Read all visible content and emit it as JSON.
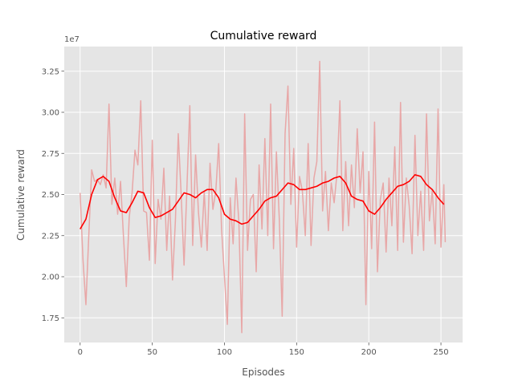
{
  "chart_data": {
    "type": "line",
    "title": "Cumulative reward",
    "xlabel": "Episodes",
    "ylabel": "Cumulative reward",
    "offset_text": "1e7",
    "xlim": [
      -11,
      265
    ],
    "ylim": [
      16000000,
      34000000
    ],
    "xticks": [
      0,
      50,
      100,
      150,
      200,
      250
    ],
    "xtick_labels": [
      "0",
      "50",
      "100",
      "150",
      "200",
      "250"
    ],
    "yticks": [
      17500000,
      20000000,
      22500000,
      25000000,
      27500000,
      30000000,
      32500000
    ],
    "ytick_labels": [
      "1.75",
      "2.00",
      "2.25",
      "2.50",
      "2.75",
      "3.00",
      "3.25"
    ],
    "grid": true,
    "colors": {
      "background": "#e5e5e5",
      "raw": "#e8a0a0",
      "smooth": "#ff0000"
    },
    "series": [
      {
        "role": "raw",
        "x": [
          0,
          2,
          4,
          6,
          8,
          10,
          12,
          14,
          16,
          18,
          20,
          22,
          24,
          26,
          28,
          30,
          32,
          34,
          36,
          38,
          40,
          42,
          44,
          46,
          48,
          50,
          52,
          54,
          56,
          58,
          60,
          62,
          64,
          66,
          68,
          70,
          72,
          74,
          76,
          78,
          80,
          82,
          84,
          86,
          88,
          90,
          92,
          94,
          96,
          98,
          100,
          102,
          104,
          106,
          108,
          110,
          112,
          114,
          116,
          118,
          120,
          122,
          124,
          126,
          128,
          130,
          132,
          134,
          136,
          138,
          140,
          142,
          144,
          146,
          148,
          150,
          152,
          154,
          156,
          158,
          160,
          162,
          164,
          166,
          168,
          170,
          172,
          174,
          176,
          178,
          180,
          182,
          184,
          186,
          188,
          190,
          192,
          194,
          196,
          198,
          200,
          202,
          204,
          206,
          208,
          210,
          212,
          214,
          216,
          218,
          220,
          222,
          224,
          226,
          228,
          230,
          232,
          234,
          236,
          238,
          240,
          242,
          244,
          246,
          248,
          250,
          252,
          253
        ],
        "y": [
          25100000,
          21000000,
          18300000,
          22500000,
          26500000,
          25800000,
          25900000,
          25600000,
          26200000,
          25400000,
          30500000,
          24400000,
          26000000,
          23800000,
          25800000,
          22500000,
          19400000,
          23600000,
          25100000,
          27700000,
          26800000,
          30700000,
          24000000,
          23900000,
          21000000,
          28300000,
          20800000,
          24700000,
          23500000,
          26600000,
          21600000,
          24900000,
          19800000,
          23400000,
          28700000,
          25000000,
          20700000,
          25400000,
          30400000,
          21900000,
          27400000,
          23900000,
          21800000,
          25200000,
          21600000,
          26900000,
          24100000,
          25200000,
          28100000,
          22900000,
          20000000,
          17100000,
          24800000,
          22000000,
          26000000,
          23300000,
          16600000,
          29900000,
          21600000,
          24700000,
          25000000,
          20300000,
          26800000,
          22900000,
          28400000,
          22500000,
          30500000,
          21700000,
          27600000,
          23500000,
          17600000,
          28700000,
          31600000,
          24400000,
          27800000,
          21800000,
          26100000,
          25200000,
          22500000,
          28100000,
          21900000,
          26000000,
          27000000,
          33100000,
          24000000,
          26400000,
          22800000,
          25700000,
          24500000,
          26300000,
          30700000,
          22800000,
          27000000,
          23100000,
          26800000,
          24200000,
          29000000,
          25100000,
          27600000,
          18300000,
          26400000,
          21700000,
          29400000,
          20300000,
          24700000,
          25700000,
          21500000,
          26000000,
          23100000,
          27900000,
          21600000,
          30600000,
          22100000,
          26000000,
          24300000,
          21400000,
          28600000,
          22500000,
          25200000,
          21600000,
          29900000,
          23400000,
          25300000,
          22000000,
          30200000,
          21800000,
          25600000,
          22100000
        ]
      },
      {
        "role": "smooth",
        "x": [
          0,
          4,
          8,
          12,
          16,
          20,
          24,
          28,
          32,
          36,
          40,
          44,
          48,
          52,
          56,
          60,
          64,
          68,
          72,
          76,
          80,
          84,
          88,
          92,
          96,
          100,
          104,
          108,
          112,
          116,
          120,
          124,
          128,
          132,
          136,
          140,
          144,
          148,
          152,
          156,
          160,
          164,
          168,
          172,
          176,
          180,
          184,
          188,
          192,
          196,
          200,
          204,
          208,
          212,
          216,
          220,
          224,
          228,
          232,
          236,
          240,
          244,
          248,
          252
        ],
        "y": [
          22900000,
          23500000,
          25000000,
          25900000,
          26100000,
          25800000,
          24800000,
          24000000,
          23900000,
          24500000,
          25200000,
          25100000,
          24200000,
          23600000,
          23700000,
          23900000,
          24100000,
          24600000,
          25100000,
          25000000,
          24800000,
          25100000,
          25300000,
          25300000,
          24800000,
          23800000,
          23500000,
          23400000,
          23200000,
          23300000,
          23700000,
          24100000,
          24600000,
          24800000,
          24900000,
          25300000,
          25700000,
          25600000,
          25300000,
          25300000,
          25400000,
          25500000,
          25700000,
          25800000,
          26000000,
          26100000,
          25700000,
          24900000,
          24700000,
          24600000,
          24000000,
          23800000,
          24200000,
          24700000,
          25100000,
          25500000,
          25600000,
          25800000,
          26200000,
          26100000,
          25600000,
          25300000,
          24800000,
          24400000
        ]
      }
    ]
  }
}
